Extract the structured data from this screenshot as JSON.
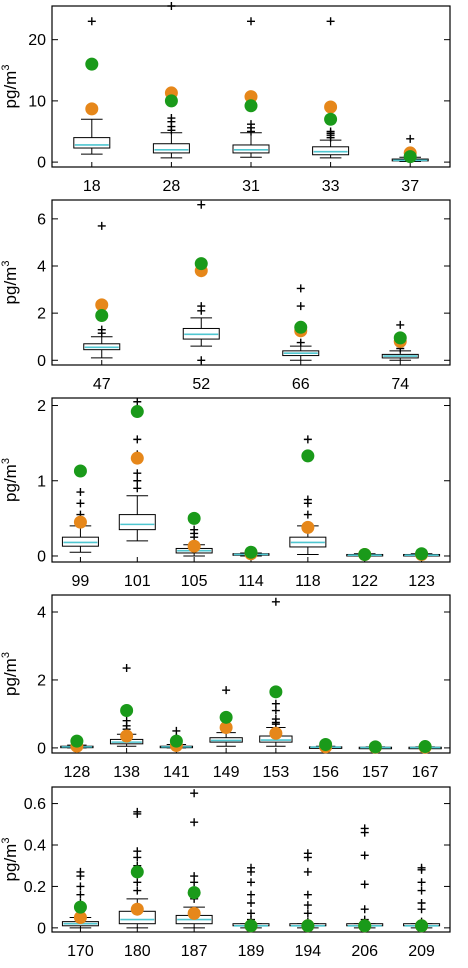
{
  "figure": {
    "ylabel": "pg/m",
    "ylabel_superscript": "3",
    "colors": {
      "box_edge": "#000000",
      "median": "#4fc6d0",
      "outlier": "#000000",
      "orange_marker": "#e6871a",
      "green_marker": "#1a9a1a"
    }
  },
  "chart_data": [
    {
      "type": "box",
      "ylim": [
        -0.8,
        25.5
      ],
      "yticks": [
        "0",
        "10",
        "20"
      ],
      "ytick_values": [
        0,
        10,
        20
      ],
      "categories": [
        "18",
        "28",
        "31",
        "33",
        "37"
      ],
      "boxes": [
        {
          "wlo": 1.3,
          "q1": 2.3,
          "med": 2.8,
          "q3": 4.0,
          "whi": 7.0,
          "out": [
            23.0
          ],
          "orange": 8.7,
          "green": 16.0
        },
        {
          "wlo": 0.7,
          "q1": 1.5,
          "med": 2.0,
          "q3": 3.0,
          "whi": 4.8,
          "out": [
            25.5,
            5.2,
            5.8,
            6.6,
            7.2
          ],
          "orange": 11.3,
          "green": 10.0
        },
        {
          "wlo": 0.8,
          "q1": 1.5,
          "med": 2.0,
          "q3": 2.8,
          "whi": 4.8,
          "out": [
            23.0,
            5.0,
            5.6,
            6.2
          ],
          "orange": 10.7,
          "green": 9.2
        },
        {
          "wlo": 0.7,
          "q1": 1.2,
          "med": 1.7,
          "q3": 2.5,
          "whi": 3.6,
          "out": [
            23.0,
            4.0,
            4.4,
            4.7,
            5.0
          ],
          "orange": 9.0,
          "green": 7.0
        },
        {
          "wlo": 0.1,
          "q1": 0.2,
          "med": 0.3,
          "q3": 0.5,
          "whi": 0.8,
          "out": [
            3.8
          ],
          "orange": 1.5,
          "green": 0.9
        }
      ]
    },
    {
      "type": "box",
      "ylim": [
        -0.2,
        6.8
      ],
      "yticks": [
        "0",
        "2",
        "4",
        "6"
      ],
      "ytick_values": [
        0,
        2,
        4,
        6
      ],
      "categories": [
        "47",
        "52",
        "66",
        "74"
      ],
      "boxes": [
        {
          "wlo": 0.1,
          "q1": 0.45,
          "med": 0.55,
          "q3": 0.7,
          "whi": 1.0,
          "out": [
            5.7,
            1.15,
            1.3
          ],
          "orange": 2.35,
          "green": 1.9
        },
        {
          "wlo": 0.6,
          "q1": 0.9,
          "med": 1.1,
          "q3": 1.35,
          "whi": 1.8,
          "out": [
            6.6,
            2.3,
            2.1,
            0.0
          ],
          "orange": 3.8,
          "green": 4.1
        },
        {
          "wlo": 0.0,
          "q1": 0.2,
          "med": 0.3,
          "q3": 0.4,
          "whi": 0.6,
          "out": [
            3.05,
            2.3,
            0.75
          ],
          "orange": 1.25,
          "green": 1.4
        },
        {
          "wlo": 0.0,
          "q1": 0.1,
          "med": 0.18,
          "q3": 0.25,
          "whi": 0.4,
          "out": [
            1.5,
            0.5
          ],
          "orange": 0.8,
          "green": 0.95
        }
      ]
    },
    {
      "type": "box",
      "ylim": [
        -0.08,
        2.1
      ],
      "yticks": [
        "0",
        "1",
        "2"
      ],
      "ytick_values": [
        0,
        1,
        2
      ],
      "categories": [
        "99",
        "101",
        "105",
        "114",
        "118",
        "122",
        "123"
      ],
      "boxes": [
        {
          "wlo": 0.05,
          "q1": 0.13,
          "med": 0.18,
          "q3": 0.25,
          "whi": 0.4,
          "out": [
            0.85,
            0.7,
            0.55
          ],
          "orange": 0.45,
          "green": 1.13
        },
        {
          "wlo": 0.2,
          "q1": 0.35,
          "med": 0.42,
          "q3": 0.55,
          "whi": 0.8,
          "out": [
            2.05,
            1.55,
            1.35,
            1.1,
            1.0,
            0.9
          ],
          "orange": 1.3,
          "green": 1.92
        },
        {
          "wlo": 0.0,
          "q1": 0.04,
          "med": 0.07,
          "q3": 0.1,
          "whi": 0.15,
          "out": [
            0.35,
            0.3,
            0.25
          ],
          "orange": 0.13,
          "green": 0.5
        },
        {
          "wlo": 0.0,
          "q1": 0.01,
          "med": 0.02,
          "q3": 0.03,
          "whi": 0.04,
          "out": [],
          "orange": 0.03,
          "green": 0.05
        },
        {
          "wlo": 0.02,
          "q1": 0.12,
          "med": 0.18,
          "q3": 0.25,
          "whi": 0.4,
          "out": [
            1.55,
            0.75,
            0.7,
            0.55
          ],
          "orange": 0.38,
          "green": 1.33
        },
        {
          "wlo": 0.0,
          "q1": 0.01,
          "med": 0.01,
          "q3": 0.02,
          "whi": 0.03,
          "out": [],
          "orange": 0.02,
          "green": 0.02
        },
        {
          "wlo": 0.0,
          "q1": 0.01,
          "med": 0.01,
          "q3": 0.02,
          "whi": 0.03,
          "out": [],
          "orange": 0.02,
          "green": 0.03
        }
      ]
    },
    {
      "type": "box",
      "ylim": [
        -0.15,
        4.5
      ],
      "yticks": [
        "0",
        "2",
        "4"
      ],
      "ytick_values": [
        0,
        2,
        4
      ],
      "categories": [
        "128",
        "138",
        "141",
        "149",
        "153",
        "156",
        "157",
        "167"
      ],
      "boxes": [
        {
          "wlo": 0.0,
          "q1": 0.02,
          "med": 0.03,
          "q3": 0.05,
          "whi": 0.08,
          "out": [],
          "orange": 0.05,
          "green": 0.2
        },
        {
          "wlo": 0.05,
          "q1": 0.12,
          "med": 0.17,
          "q3": 0.25,
          "whi": 0.4,
          "out": [
            2.35,
            0.8,
            0.65,
            0.55
          ],
          "orange": 0.35,
          "green": 1.1
        },
        {
          "wlo": 0.0,
          "q1": 0.02,
          "med": 0.03,
          "q3": 0.05,
          "whi": 0.1,
          "out": [
            0.5,
            0.3
          ],
          "orange": 0.07,
          "green": 0.2
        },
        {
          "wlo": 0.05,
          "q1": 0.17,
          "med": 0.22,
          "q3": 0.3,
          "whi": 0.45,
          "out": [
            1.7,
            0.7
          ],
          "orange": 0.6,
          "green": 0.9
        },
        {
          "wlo": 0.05,
          "q1": 0.17,
          "med": 0.23,
          "q3": 0.35,
          "whi": 0.6,
          "out": [
            4.3,
            1.3,
            1.1,
            0.85,
            0.75,
            0.7
          ],
          "orange": 0.43,
          "green": 1.65
        },
        {
          "wlo": 0.0,
          "q1": 0.01,
          "med": 0.02,
          "q3": 0.03,
          "whi": 0.05,
          "out": [],
          "orange": 0.03,
          "green": 0.1
        },
        {
          "wlo": 0.0,
          "q1": 0.01,
          "med": 0.01,
          "q3": 0.02,
          "whi": 0.03,
          "out": [],
          "orange": 0.02,
          "green": 0.03
        },
        {
          "wlo": 0.0,
          "q1": 0.01,
          "med": 0.01,
          "q3": 0.02,
          "whi": 0.03,
          "out": [],
          "orange": 0.02,
          "green": 0.04
        }
      ]
    },
    {
      "type": "box",
      "ylim": [
        -0.02,
        0.68
      ],
      "yticks": [
        "0",
        "0.2",
        "0.4",
        "0.6"
      ],
      "ytick_values": [
        0,
        0.2,
        0.4,
        0.6
      ],
      "categories": [
        "170",
        "180",
        "187",
        "189",
        "194",
        "206",
        "209"
      ],
      "boxes": [
        {
          "wlo": 0.0,
          "q1": 0.01,
          "med": 0.02,
          "q3": 0.03,
          "whi": 0.05,
          "out": [
            0.27,
            0.25,
            0.2,
            0.16,
            0.12
          ],
          "orange": 0.05,
          "green": 0.1
        },
        {
          "wlo": 0.0,
          "q1": 0.02,
          "med": 0.04,
          "q3": 0.08,
          "whi": 0.14,
          "out": [
            0.56,
            0.55,
            0.37,
            0.34,
            0.3,
            0.22,
            0.18
          ],
          "orange": 0.09,
          "green": 0.27
        },
        {
          "wlo": 0.0,
          "q1": 0.02,
          "med": 0.04,
          "q3": 0.06,
          "whi": 0.1,
          "out": [
            0.65,
            0.51,
            0.25,
            0.22,
            0.18,
            0.14
          ],
          "orange": 0.07,
          "green": 0.17
        },
        {
          "wlo": 0.0,
          "q1": 0.01,
          "med": 0.01,
          "q3": 0.02,
          "whi": 0.02,
          "out": [
            0.29,
            0.27,
            0.22,
            0.16,
            0.12,
            0.07,
            0.04
          ],
          "orange": 0.01,
          "green": 0.01
        },
        {
          "wlo": 0.0,
          "q1": 0.01,
          "med": 0.01,
          "q3": 0.02,
          "whi": 0.02,
          "out": [
            0.36,
            0.34,
            0.27,
            0.16,
            0.11,
            0.07,
            0.03
          ],
          "orange": 0.01,
          "green": 0.01
        },
        {
          "wlo": 0.0,
          "q1": 0.01,
          "med": 0.01,
          "q3": 0.02,
          "whi": 0.02,
          "out": [
            0.48,
            0.46,
            0.35,
            0.21,
            0.09,
            0.04,
            0.02
          ],
          "orange": 0.01,
          "green": 0.01
        },
        {
          "wlo": 0.0,
          "q1": 0.01,
          "med": 0.01,
          "q3": 0.02,
          "whi": 0.02,
          "out": [
            0.29,
            0.28,
            0.22,
            0.18,
            0.12,
            0.09,
            0.03
          ],
          "orange": 0.01,
          "green": 0.01
        }
      ]
    }
  ]
}
